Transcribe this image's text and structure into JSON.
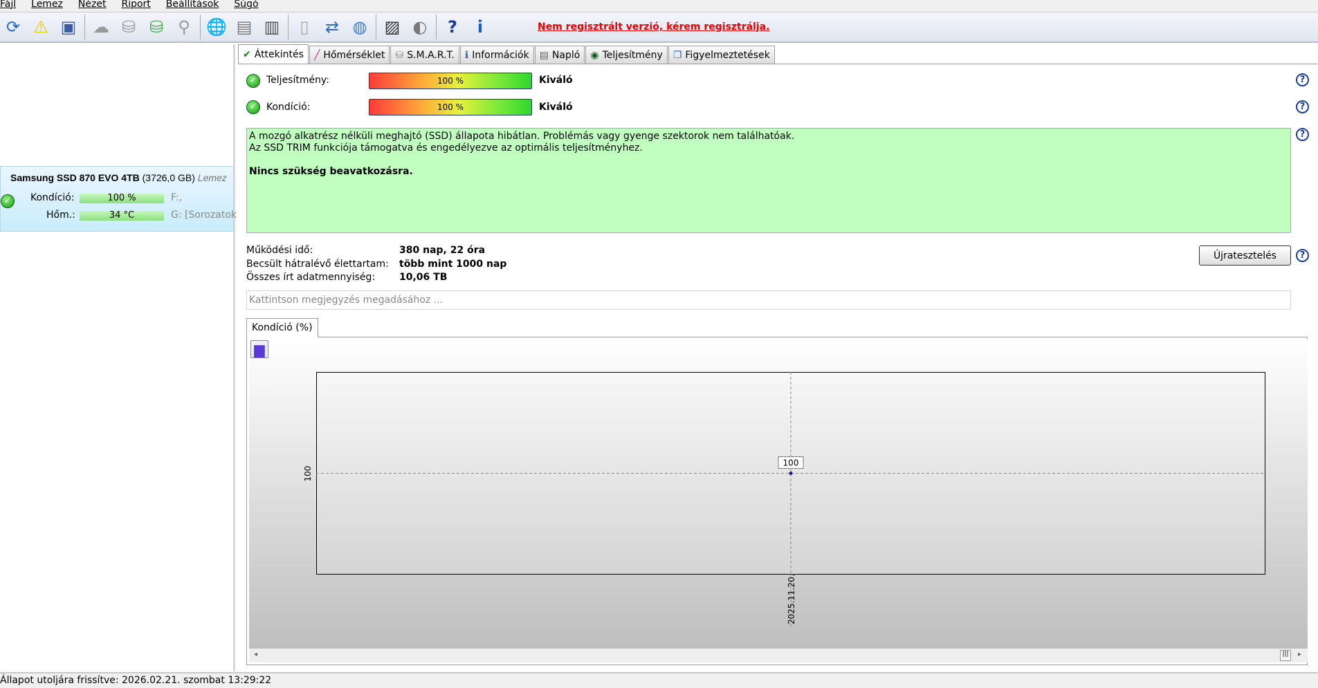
{
  "menu": [
    "Fájl",
    "Lemez",
    "Nézet",
    "Riport",
    "Beállítások",
    "Súgó"
  ],
  "toolbar": {
    "icons": [
      "refresh-icon",
      "warning-icon",
      "drive-icon",
      "drive-gray-icon",
      "drive-info-icon",
      "drive-check-icon",
      "drive-search-icon",
      "globe-icon",
      "server-icon",
      "computer-icon",
      "document-icon",
      "sync-icon",
      "network-icon",
      "monitor-icon",
      "speaker-icon",
      "help-icon",
      "info-icon"
    ],
    "register_notice": "Nem regisztrált verzió, kérem regisztrálja."
  },
  "drive": {
    "name": "Samsung SSD 870 EVO 4TB",
    "size": "(3726,0 GB)",
    "extra": "Lemez",
    "condition_label": "Kondíció:",
    "condition_value": "100 %",
    "temp_label": "Hőm.:",
    "temp_value": "34 °C",
    "partition1": "F:,",
    "partition2": "G: [Sorozatok"
  },
  "tabs": [
    {
      "label": "Áttekintés",
      "icon": "check-icon",
      "active": true
    },
    {
      "label": "Hőmérséklet",
      "icon": "thermometer-icon"
    },
    {
      "label": "S.M.A.R.T.",
      "icon": "drive-icon"
    },
    {
      "label": "Információk",
      "icon": "info-icon"
    },
    {
      "label": "Napló",
      "icon": "log-icon"
    },
    {
      "label": "Teljesítmény",
      "icon": "gauge-icon"
    },
    {
      "label": "Figyelmeztetések",
      "icon": "alerts-icon"
    }
  ],
  "overview": {
    "performance_label": "Teljesítmény:",
    "performance_value": "100 %",
    "performance_percent": 100,
    "performance_rating": "Kiváló",
    "condition_label": "Kondíció:",
    "condition_value": "100 %",
    "condition_percent": 100,
    "condition_rating": "Kiváló",
    "status_line1": "A mozgó alkatrész nélküli meghajtó (SSD) állapota hibátlan. Problémás vagy gyenge szektorok nem találhatóak.",
    "status_line2": "Az SSD TRIM funkciója támogatva és engedélyezve az optimális teljesítményhez.",
    "status_line3": "Nincs szükség beavatkozásra.",
    "status_color": "#c0ffc0",
    "uptime_label": "Működési idő:",
    "uptime_value": "380 nap, 22 óra",
    "lifetime_label": "Becsült hátralévő élettartam:",
    "lifetime_value": "több mint 1000 nap",
    "written_label": "Összes írt adatmennyiség:",
    "written_value": "10,06 TB",
    "retest_button": "Újratesztelés",
    "note_placeholder": "Kattintson megjegyzés megadásához ..."
  },
  "chart_tab": "Kondíció  (%)",
  "chart_data": {
    "type": "line",
    "x": [
      "2025.11.20."
    ],
    "values": [
      100
    ],
    "data_labels": [
      "100"
    ],
    "yticks": [
      "100"
    ],
    "xticks": [
      "2025.11.20."
    ],
    "grid": true
  },
  "statusbar": "Állapot utoljára frissítve: 2026.02.21. szombat 13:29:22"
}
